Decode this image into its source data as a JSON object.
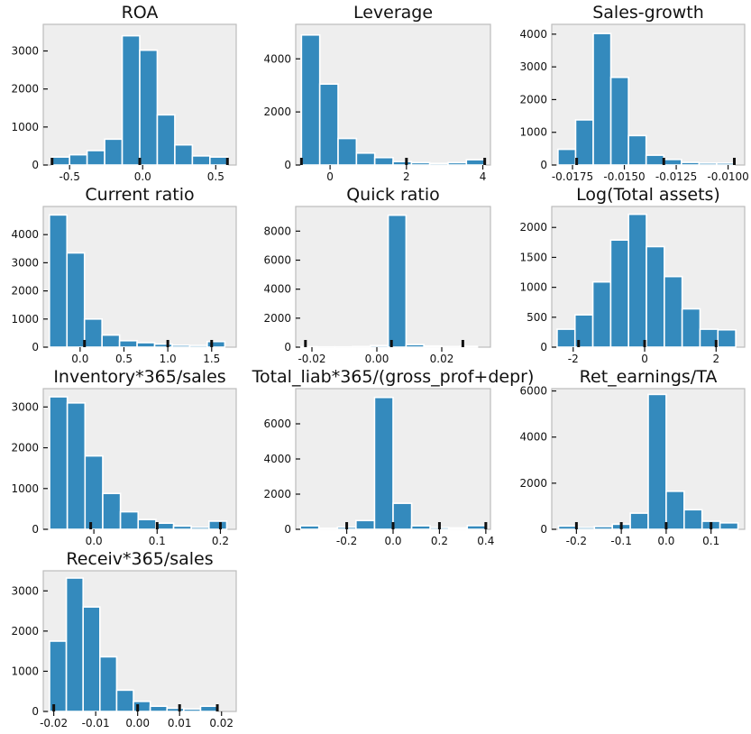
{
  "chart_data": [
    {
      "type": "bar",
      "title": "ROA",
      "xticks": [
        -0.5,
        0.0,
        0.5
      ],
      "xlabels": [
        "-0.5",
        "0.0",
        "0.5"
      ],
      "xlim": [
        -0.68,
        0.64
      ],
      "yticks": [
        0,
        1000,
        2000,
        3000
      ],
      "ylabels": [
        "0",
        "1000",
        "2000",
        "3000"
      ],
      "ylim": [
        0,
        3700
      ],
      "bins": [
        [
          -0.62,
          -0.5,
          210
        ],
        [
          -0.5,
          -0.38,
          270
        ],
        [
          -0.38,
          -0.26,
          380
        ],
        [
          -0.26,
          -0.14,
          680
        ],
        [
          -0.14,
          -0.02,
          3400
        ],
        [
          -0.02,
          0.1,
          3020
        ],
        [
          0.1,
          0.22,
          1320
        ],
        [
          0.22,
          0.34,
          530
        ],
        [
          0.34,
          0.46,
          240
        ],
        [
          0.46,
          0.58,
          210
        ]
      ],
      "rug": [
        -0.62,
        -0.02,
        0.58
      ]
    },
    {
      "type": "bar",
      "title": "Leverage",
      "xticks": [
        0,
        2,
        4
      ],
      "xlabels": [
        "0",
        "2",
        "4"
      ],
      "xlim": [
        -0.9,
        4.2
      ],
      "yticks": [
        0,
        2000,
        4000
      ],
      "ylabels": [
        "0",
        "2000",
        "4000"
      ],
      "ylim": [
        0,
        5300
      ],
      "bins": [
        [
          -0.75,
          -0.27,
          4900
        ],
        [
          -0.27,
          0.21,
          3050
        ],
        [
          0.21,
          0.69,
          1000
        ],
        [
          0.69,
          1.17,
          450
        ],
        [
          1.17,
          1.65,
          280
        ],
        [
          1.65,
          2.13,
          130
        ],
        [
          2.13,
          2.61,
          90
        ],
        [
          2.61,
          3.09,
          60
        ],
        [
          3.09,
          3.57,
          90
        ],
        [
          3.57,
          4.05,
          200
        ]
      ],
      "rug": [
        -0.75,
        2.0,
        4.05
      ]
    },
    {
      "type": "bar",
      "title": "Sales-growth",
      "xticks": [
        -0.0175,
        -0.015,
        -0.0125,
        -0.01
      ],
      "xlabels": [
        "-0.0175",
        "-0.0150",
        "-0.0125",
        "-0.0100"
      ],
      "xlim": [
        -0.0185,
        -0.0092
      ],
      "yticks": [
        0,
        1000,
        2000,
        3000,
        4000
      ],
      "ylabels": [
        "0",
        "1000",
        "2000",
        "3000",
        "4000"
      ],
      "ylim": [
        0,
        4300
      ],
      "bins": [
        [
          -0.0182,
          -0.01735,
          480
        ],
        [
          -0.01735,
          -0.0165,
          1380
        ],
        [
          -0.0165,
          -0.01565,
          4020
        ],
        [
          -0.01565,
          -0.0148,
          2680
        ],
        [
          -0.0148,
          -0.01395,
          900
        ],
        [
          -0.01395,
          -0.0131,
          300
        ],
        [
          -0.0131,
          -0.01225,
          170
        ],
        [
          -0.01225,
          -0.0114,
          80
        ],
        [
          -0.0114,
          -0.01055,
          60
        ],
        [
          -0.01055,
          -0.0097,
          60
        ]
      ],
      "rug": [
        -0.0173,
        -0.0131,
        -0.0097
      ]
    },
    {
      "type": "bar",
      "title": "Current ratio",
      "xticks": [
        0.0,
        0.5,
        1.0,
        1.5
      ],
      "xlabels": [
        "0.0",
        "0.5",
        "1.0",
        "1.5"
      ],
      "xlim": [
        -0.42,
        1.78
      ],
      "yticks": [
        0,
        1000,
        2000,
        3000,
        4000
      ],
      "ylabels": [
        "0",
        "1000",
        "2000",
        "3000",
        "4000"
      ],
      "ylim": [
        0,
        5000
      ],
      "bins": [
        [
          -0.35,
          -0.15,
          4700
        ],
        [
          -0.15,
          0.05,
          3350
        ],
        [
          0.05,
          0.25,
          1000
        ],
        [
          0.25,
          0.45,
          430
        ],
        [
          0.45,
          0.65,
          230
        ],
        [
          0.65,
          0.85,
          160
        ],
        [
          0.85,
          1.05,
          110
        ],
        [
          1.05,
          1.25,
          70
        ],
        [
          1.25,
          1.45,
          60
        ],
        [
          1.45,
          1.65,
          200
        ]
      ],
      "rug": [
        0.05,
        1.0,
        1.5
      ]
    },
    {
      "type": "bar",
      "title": "Quick ratio",
      "xticks": [
        -0.02,
        0.0,
        0.02
      ],
      "xlabels": [
        "-0.02",
        "0.00",
        "0.02"
      ],
      "xlim": [
        -0.025,
        0.035
      ],
      "yticks": [
        0,
        2000,
        4000,
        6000,
        8000
      ],
      "ylabels": [
        "0",
        "2000",
        "4000",
        "6000",
        "8000"
      ],
      "ylim": [
        0,
        9700
      ],
      "bins": [
        [
          -0.024,
          -0.0185,
          30
        ],
        [
          -0.0185,
          -0.013,
          20
        ],
        [
          -0.013,
          -0.0075,
          20
        ],
        [
          -0.0075,
          -0.002,
          40
        ],
        [
          -0.002,
          0.0035,
          110
        ],
        [
          0.0035,
          0.009,
          9100
        ],
        [
          0.009,
          0.0145,
          180
        ],
        [
          0.0145,
          0.02,
          80
        ],
        [
          0.02,
          0.0255,
          40
        ],
        [
          0.0255,
          0.031,
          60
        ]
      ],
      "rug": [
        -0.022,
        0.0045,
        0.0265
      ]
    },
    {
      "type": "bar",
      "title": "Log(Total assets)",
      "xticks": [
        -2,
        0,
        2
      ],
      "xlabels": [
        "-2",
        "0",
        "2"
      ],
      "xlim": [
        -2.6,
        2.8
      ],
      "yticks": [
        0,
        500,
        1000,
        1500,
        2000
      ],
      "ylabels": [
        "0",
        "500",
        "1000",
        "1500",
        "2000"
      ],
      "ylim": [
        0,
        2350
      ],
      "bins": [
        [
          -2.45,
          -1.95,
          300
        ],
        [
          -1.95,
          -1.45,
          540
        ],
        [
          -1.45,
          -0.95,
          1090
        ],
        [
          -0.95,
          -0.45,
          1790
        ],
        [
          -0.45,
          0.05,
          2220
        ],
        [
          0.05,
          0.55,
          1680
        ],
        [
          0.55,
          1.05,
          1180
        ],
        [
          1.05,
          1.55,
          640
        ],
        [
          1.55,
          2.05,
          300
        ],
        [
          2.05,
          2.55,
          290
        ]
      ],
      "rug": [
        -1.85,
        0.0,
        2.0
      ]
    },
    {
      "type": "bar",
      "title": "Inventory*365/sales",
      "xticks": [
        0.0,
        0.1,
        0.2
      ],
      "xlabels": [
        "0.0",
        "0.1",
        "0.2"
      ],
      "xlim": [
        -0.08,
        0.225
      ],
      "yticks": [
        0,
        1000,
        2000,
        3000
      ],
      "ylabels": [
        "0",
        "1000",
        "2000",
        "3000"
      ],
      "ylim": [
        0,
        3450
      ],
      "bins": [
        [
          -0.07,
          -0.042,
          3250
        ],
        [
          -0.042,
          -0.014,
          3100
        ],
        [
          -0.014,
          0.014,
          1800
        ],
        [
          0.014,
          0.042,
          880
        ],
        [
          0.042,
          0.07,
          430
        ],
        [
          0.07,
          0.098,
          240
        ],
        [
          0.098,
          0.126,
          150
        ],
        [
          0.126,
          0.154,
          80
        ],
        [
          0.154,
          0.182,
          50
        ],
        [
          0.182,
          0.21,
          200
        ]
      ],
      "rug": [
        -0.005,
        0.1,
        0.2
      ]
    },
    {
      "type": "bar",
      "title": "Total_liab*365/(gross_prof+depr)",
      "xticks": [
        -0.2,
        0.0,
        0.2,
        0.4
      ],
      "xlabels": [
        "-0.2",
        "0.0",
        "0.2",
        "0.4"
      ],
      "xlim": [
        -0.42,
        0.42
      ],
      "yticks": [
        0,
        2000,
        4000,
        6000
      ],
      "ylabels": [
        "0",
        "2000",
        "4000",
        "6000"
      ],
      "ylim": [
        0,
        8000
      ],
      "bins": [
        [
          -0.4,
          -0.32,
          200
        ],
        [
          -0.32,
          -0.24,
          60
        ],
        [
          -0.24,
          -0.16,
          120
        ],
        [
          -0.16,
          -0.08,
          500
        ],
        [
          -0.08,
          0.0,
          7500
        ],
        [
          0.0,
          0.08,
          1480
        ],
        [
          0.08,
          0.16,
          200
        ],
        [
          0.16,
          0.24,
          100
        ],
        [
          0.24,
          0.32,
          80
        ],
        [
          0.32,
          0.4,
          210
        ]
      ],
      "rug": [
        -0.2,
        0.0,
        0.2,
        0.4
      ]
    },
    {
      "type": "bar",
      "title": "Ret_earnings/TA",
      "xticks": [
        -0.2,
        -0.1,
        0.0,
        0.1
      ],
      "xlabels": [
        "-0.2",
        "-0.1",
        "0.0",
        "0.1"
      ],
      "xlim": [
        -0.255,
        0.175
      ],
      "yticks": [
        0,
        2000,
        4000,
        6000
      ],
      "ylabels": [
        "0",
        "2000",
        "4000",
        "6000"
      ],
      "ylim": [
        0,
        6100
      ],
      "bins": [
        [
          -0.24,
          -0.2,
          140
        ],
        [
          -0.2,
          -0.16,
          80
        ],
        [
          -0.16,
          -0.12,
          120
        ],
        [
          -0.12,
          -0.08,
          220
        ],
        [
          -0.08,
          -0.04,
          700
        ],
        [
          -0.04,
          0.0,
          5850
        ],
        [
          0.0,
          0.04,
          1650
        ],
        [
          0.04,
          0.08,
          850
        ],
        [
          0.08,
          0.12,
          350
        ],
        [
          0.12,
          0.16,
          280
        ]
      ],
      "rug": [
        -0.2,
        -0.1,
        0.0,
        0.1
      ]
    },
    {
      "type": "bar",
      "title": "Receiv*365/sales",
      "xticks": [
        -0.02,
        -0.01,
        0.0,
        0.01,
        0.02
      ],
      "xlabels": [
        "-0.02",
        "-0.01",
        "0.00",
        "0.01",
        "0.02"
      ],
      "xlim": [
        -0.0225,
        0.0235
      ],
      "yticks": [
        0,
        1000,
        2000,
        3000
      ],
      "ylabels": [
        "0",
        "1000",
        "2000",
        "3000"
      ],
      "ylim": [
        0,
        3500
      ],
      "bins": [
        [
          -0.021,
          -0.017,
          1750
        ],
        [
          -0.017,
          -0.013,
          3320
        ],
        [
          -0.013,
          -0.009,
          2600
        ],
        [
          -0.009,
          -0.005,
          1360
        ],
        [
          -0.005,
          -0.001,
          530
        ],
        [
          -0.001,
          0.003,
          250
        ],
        [
          0.003,
          0.007,
          130
        ],
        [
          0.007,
          0.011,
          80
        ],
        [
          0.011,
          0.015,
          60
        ],
        [
          0.015,
          0.019,
          130
        ]
      ],
      "rug": [
        -0.02,
        0.0,
        0.01,
        0.019
      ]
    }
  ]
}
